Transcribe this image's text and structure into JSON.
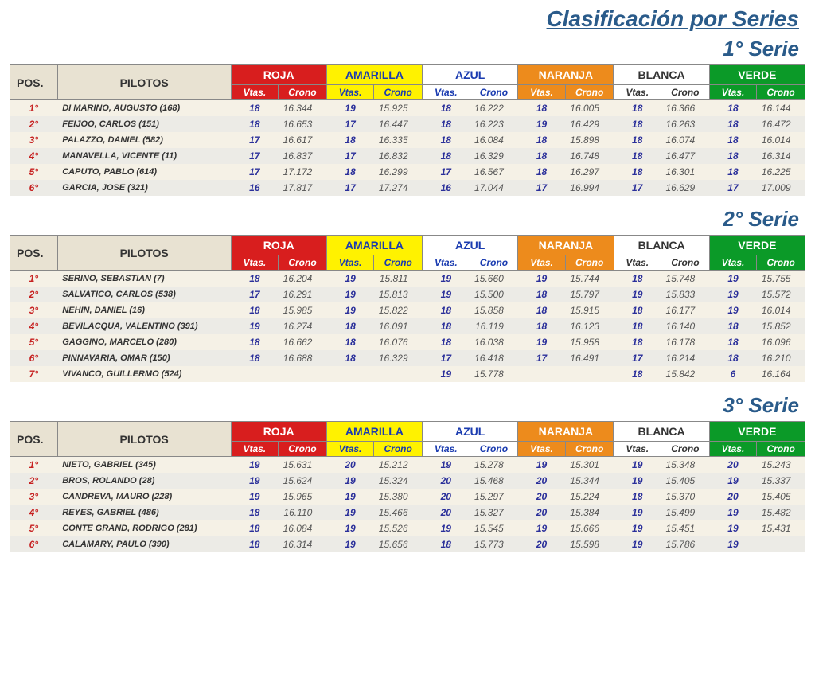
{
  "title": "Clasificación por Series",
  "headers": {
    "pos": "POS.",
    "pilotos": "PILOTOS",
    "vtas": "Vtas.",
    "crono": "Crono"
  },
  "tracks": [
    {
      "name": "ROJA",
      "bg": "#d81e1e",
      "fg": "#ffffff",
      "cls": "roja"
    },
    {
      "name": "AMARILLA",
      "bg": "#fff200",
      "fg": "#1a3bb0",
      "cls": "amarilla"
    },
    {
      "name": "AZUL",
      "bg": "#ffffff",
      "fg": "#1a3bb0",
      "cls": "azul"
    },
    {
      "name": "NARANJA",
      "bg": "#ed8b1c",
      "fg": "#ffffff",
      "cls": "naranja"
    },
    {
      "name": "BLANCA",
      "bg": "#ffffff",
      "fg": "#333333",
      "cls": "blanca"
    },
    {
      "name": "VERDE",
      "bg": "#0b9a28",
      "fg": "#ffffff",
      "cls": "verde"
    }
  ],
  "series": [
    {
      "label": "1° Serie",
      "rows": [
        {
          "pos": "1°",
          "pilot": "DI MARINO, AUGUSTO (168)",
          "data": [
            [
              18,
              "16.344"
            ],
            [
              19,
              "15.925"
            ],
            [
              18,
              "16.222"
            ],
            [
              18,
              "16.005"
            ],
            [
              18,
              "16.366"
            ],
            [
              18,
              "16.144"
            ]
          ]
        },
        {
          "pos": "2°",
          "pilot": "FEIJOO, CARLOS (151)",
          "data": [
            [
              18,
              "16.653"
            ],
            [
              17,
              "16.447"
            ],
            [
              18,
              "16.223"
            ],
            [
              19,
              "16.429"
            ],
            [
              18,
              "16.263"
            ],
            [
              18,
              "16.472"
            ]
          ]
        },
        {
          "pos": "3°",
          "pilot": "PALAZZO, DANIEL (582)",
          "data": [
            [
              17,
              "16.617"
            ],
            [
              18,
              "16.335"
            ],
            [
              18,
              "16.084"
            ],
            [
              18,
              "15.898"
            ],
            [
              18,
              "16.074"
            ],
            [
              18,
              "16.014"
            ]
          ]
        },
        {
          "pos": "4°",
          "pilot": "MANAVELLA, VICENTE (11)",
          "data": [
            [
              17,
              "16.837"
            ],
            [
              17,
              "16.832"
            ],
            [
              18,
              "16.329"
            ],
            [
              18,
              "16.748"
            ],
            [
              18,
              "16.477"
            ],
            [
              18,
              "16.314"
            ]
          ]
        },
        {
          "pos": "5°",
          "pilot": "CAPUTO, PABLO  (614)",
          "data": [
            [
              17,
              "17.172"
            ],
            [
              18,
              "16.299"
            ],
            [
              17,
              "16.567"
            ],
            [
              18,
              "16.297"
            ],
            [
              18,
              "16.301"
            ],
            [
              18,
              "16.225"
            ]
          ]
        },
        {
          "pos": "6°",
          "pilot": "GARCIA, JOSE (321)",
          "data": [
            [
              16,
              "17.817"
            ],
            [
              17,
              "17.274"
            ],
            [
              16,
              "17.044"
            ],
            [
              17,
              "16.994"
            ],
            [
              17,
              "16.629"
            ],
            [
              17,
              "17.009"
            ]
          ]
        }
      ]
    },
    {
      "label": "2° Serie",
      "rows": [
        {
          "pos": "1°",
          "pilot": "SERINO, SEBASTIAN (7)",
          "data": [
            [
              18,
              "16.204"
            ],
            [
              19,
              "15.811"
            ],
            [
              19,
              "15.660"
            ],
            [
              19,
              "15.744"
            ],
            [
              18,
              "15.748"
            ],
            [
              19,
              "15.755"
            ]
          ]
        },
        {
          "pos": "2°",
          "pilot": "SALVATICO, CARLOS  (538)",
          "data": [
            [
              17,
              "16.291"
            ],
            [
              19,
              "15.813"
            ],
            [
              19,
              "15.500"
            ],
            [
              18,
              "15.797"
            ],
            [
              19,
              "15.833"
            ],
            [
              19,
              "15.572"
            ]
          ]
        },
        {
          "pos": "3°",
          "pilot": "NEHIN, DANIEL (16)",
          "data": [
            [
              18,
              "15.985"
            ],
            [
              19,
              "15.822"
            ],
            [
              18,
              "15.858"
            ],
            [
              18,
              "15.915"
            ],
            [
              18,
              "16.177"
            ],
            [
              19,
              "16.014"
            ]
          ]
        },
        {
          "pos": "4°",
          "pilot": "BEVILACQUA, VALENTINO (391)",
          "data": [
            [
              19,
              "16.274"
            ],
            [
              18,
              "16.091"
            ],
            [
              18,
              "16.119"
            ],
            [
              18,
              "16.123"
            ],
            [
              18,
              "16.140"
            ],
            [
              18,
              "15.852"
            ]
          ]
        },
        {
          "pos": "5°",
          "pilot": "GAGGINO, MARCELO (280)",
          "data": [
            [
              18,
              "16.662"
            ],
            [
              18,
              "16.076"
            ],
            [
              18,
              "16.038"
            ],
            [
              19,
              "15.958"
            ],
            [
              18,
              "16.178"
            ],
            [
              18,
              "16.096"
            ]
          ]
        },
        {
          "pos": "6°",
          "pilot": "PINNAVARIA, OMAR (150)",
          "data": [
            [
              18,
              "16.688"
            ],
            [
              18,
              "16.329"
            ],
            [
              17,
              "16.418"
            ],
            [
              17,
              "16.491"
            ],
            [
              17,
              "16.214"
            ],
            [
              18,
              "16.210"
            ]
          ]
        },
        {
          "pos": "7°",
          "pilot": "VIVANCO, GUILLERMO (524)",
          "data": [
            [
              "",
              ""
            ],
            [
              "",
              ""
            ],
            [
              19,
              "15.778"
            ],
            [
              "",
              ""
            ],
            [
              18,
              "15.842"
            ],
            [
              6,
              "16.164"
            ]
          ]
        }
      ]
    },
    {
      "label": "3° Serie",
      "rows": [
        {
          "pos": "1°",
          "pilot": "NIETO, GABRIEL (345)",
          "data": [
            [
              19,
              "15.631"
            ],
            [
              20,
              "15.212"
            ],
            [
              19,
              "15.278"
            ],
            [
              19,
              "15.301"
            ],
            [
              19,
              "15.348"
            ],
            [
              20,
              "15.243"
            ]
          ]
        },
        {
          "pos": "2°",
          "pilot": "BROS, ROLANDO (28)",
          "data": [
            [
              19,
              "15.624"
            ],
            [
              19,
              "15.324"
            ],
            [
              20,
              "15.468"
            ],
            [
              20,
              "15.344"
            ],
            [
              19,
              "15.405"
            ],
            [
              19,
              "15.337"
            ]
          ]
        },
        {
          "pos": "3°",
          "pilot": "CANDREVA, MAURO (228)",
          "data": [
            [
              19,
              "15.965"
            ],
            [
              19,
              "15.380"
            ],
            [
              20,
              "15.297"
            ],
            [
              20,
              "15.224"
            ],
            [
              18,
              "15.370"
            ],
            [
              20,
              "15.405"
            ]
          ]
        },
        {
          "pos": "4°",
          "pilot": "REYES, GABRIEL (486)",
          "data": [
            [
              18,
              "16.110"
            ],
            [
              19,
              "15.466"
            ],
            [
              20,
              "15.327"
            ],
            [
              20,
              "15.384"
            ],
            [
              19,
              "15.499"
            ],
            [
              19,
              "15.482"
            ]
          ]
        },
        {
          "pos": "5°",
          "pilot": "CONTE GRAND, RODRIGO (281)",
          "data": [
            [
              18,
              "16.084"
            ],
            [
              19,
              "15.526"
            ],
            [
              19,
              "15.545"
            ],
            [
              19,
              "15.666"
            ],
            [
              19,
              "15.451"
            ],
            [
              19,
              "15.431"
            ]
          ]
        },
        {
          "pos": "6°",
          "pilot": "CALAMARY, PAULO (390)",
          "data": [
            [
              18,
              "16.314"
            ],
            [
              19,
              "15.656"
            ],
            [
              18,
              "15.773"
            ],
            [
              20,
              "15.598"
            ],
            [
              19,
              "15.786"
            ],
            [
              19,
              ""
            ]
          ]
        }
      ]
    }
  ]
}
